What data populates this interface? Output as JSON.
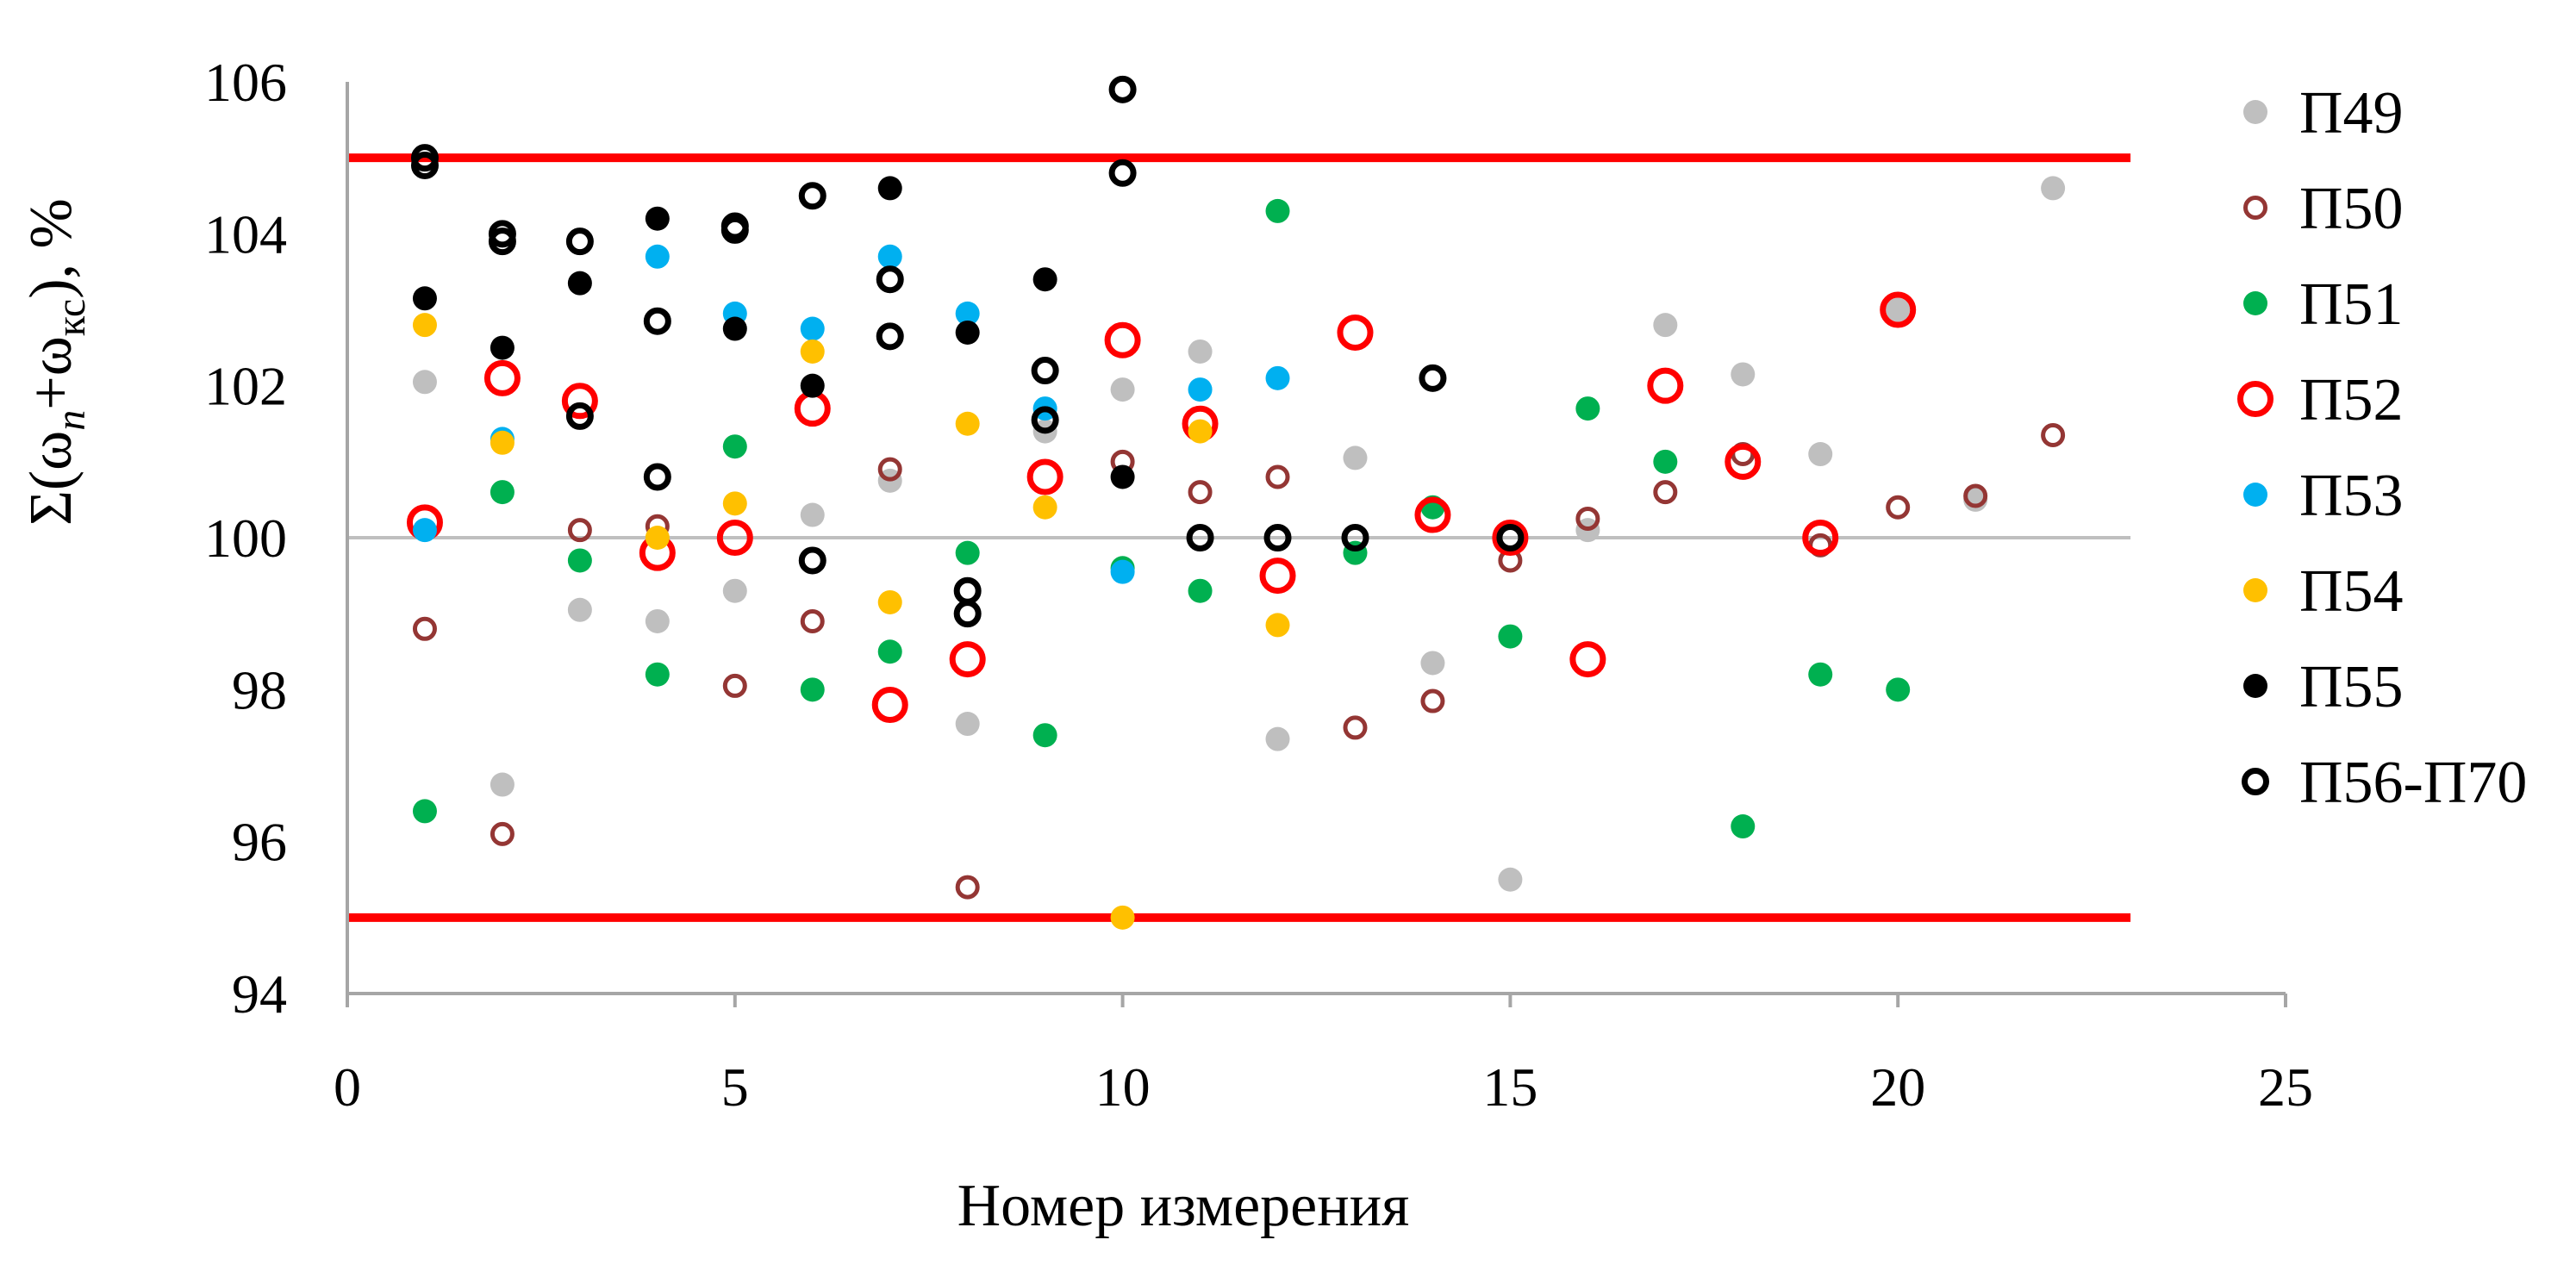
{
  "chart_data": {
    "type": "scatter",
    "title": "",
    "xlabel": "Номер измерения",
    "ylabel": {
      "sigma": "Σ(ω",
      "sub1": "n",
      "plus": "+ω",
      "sub2": "кс",
      "tail": "), %"
    },
    "xlim": [
      0,
      25
    ],
    "ylim": [
      94,
      106
    ],
    "x_ticks": [
      "0",
      "5",
      "10",
      "15",
      "20",
      "25"
    ],
    "y_ticks": [
      "94",
      "96",
      "98",
      "100",
      "102",
      "104",
      "106"
    ],
    "grid": false,
    "legend_position": "right",
    "reference_lines": [
      {
        "y": 105,
        "color": "#ff0000",
        "x_range": [
          0,
          23
        ]
      },
      {
        "y": 95,
        "color": "#ff0000",
        "x_range": [
          0,
          23
        ]
      },
      {
        "y": 100,
        "color": "#bfbfbf",
        "x_range": [
          0,
          23
        ]
      }
    ],
    "series": [
      {
        "name": "П49",
        "marker": "filled",
        "color": "#bfbfbf",
        "size": "small",
        "x": [
          1,
          2,
          3,
          4,
          5,
          6,
          7,
          8,
          9,
          10,
          11,
          12,
          13,
          14,
          15,
          16,
          17,
          18,
          19,
          20,
          21,
          22
        ],
        "y": [
          102.05,
          96.75,
          99.05,
          98.9,
          99.3,
          100.3,
          100.75,
          97.55,
          101.4,
          101.95,
          102.45,
          97.35,
          101.05,
          98.35,
          95.5,
          100.1,
          102.8,
          102.15,
          101.1,
          103.0,
          100.5,
          104.6
        ]
      },
      {
        "name": "П50",
        "marker": "hollow",
        "color": "#943634",
        "size": "small",
        "x": [
          1,
          2,
          3,
          4,
          5,
          6,
          7,
          8,
          9,
          10,
          11,
          12,
          13,
          14,
          15,
          16,
          17,
          18,
          19,
          20,
          21,
          22
        ],
        "y": [
          98.8,
          96.1,
          100.1,
          100.15,
          98.05,
          98.9,
          100.9,
          95.4,
          101.55,
          101.0,
          100.6,
          100.8,
          97.5,
          97.85,
          99.7,
          100.25,
          100.6,
          101.1,
          99.9,
          100.4,
          100.55,
          101.35
        ]
      },
      {
        "name": "П51",
        "marker": "filled",
        "color": "#00b050",
        "size": "small",
        "x": [
          1,
          2,
          3,
          4,
          5,
          6,
          7,
          8,
          9,
          10,
          11,
          12,
          13,
          14,
          15,
          16,
          17,
          18,
          19,
          20
        ],
        "y": [
          96.4,
          100.6,
          99.7,
          98.2,
          101.2,
          98.0,
          98.5,
          99.8,
          97.4,
          99.6,
          99.3,
          104.3,
          99.8,
          100.4,
          98.7,
          101.7,
          101.0,
          96.2,
          98.2,
          98.0
        ]
      },
      {
        "name": "П52",
        "marker": "hollow",
        "color": "#ff0000",
        "size": "large",
        "x": [
          1,
          2,
          3,
          4,
          5,
          6,
          7,
          8,
          9,
          10,
          11,
          12,
          13,
          14,
          15,
          16,
          17,
          18,
          19,
          20
        ],
        "y": [
          100.2,
          102.1,
          101.8,
          99.8,
          100.0,
          101.7,
          97.8,
          98.4,
          100.8,
          102.6,
          101.5,
          99.5,
          102.7,
          100.3,
          100.0,
          98.4,
          102.0,
          101.0,
          100.0,
          103.0
        ]
      },
      {
        "name": "П53",
        "marker": "filled",
        "color": "#00b0f0",
        "size": "small",
        "x": [
          1,
          2,
          4,
          5,
          6,
          7,
          8,
          9,
          10,
          11,
          12
        ],
        "y": [
          100.1,
          101.3,
          103.7,
          102.95,
          102.75,
          103.7,
          102.95,
          101.7,
          99.55,
          101.95,
          102.1
        ]
      },
      {
        "name": "П54",
        "marker": "filled",
        "color": "#ffc000",
        "size": "small",
        "x": [
          1,
          2,
          4,
          5,
          6,
          7,
          8,
          9,
          10,
          11,
          12
        ],
        "y": [
          102.8,
          101.25,
          100.0,
          100.45,
          102.45,
          99.15,
          101.5,
          100.4,
          95.0,
          101.4,
          98.85
        ]
      },
      {
        "name": "П55",
        "marker": "filled",
        "color": "#000000",
        "size": "small",
        "x": [
          1,
          2,
          3,
          4,
          5,
          6,
          7,
          8,
          9,
          10
        ],
        "y": [
          103.15,
          102.5,
          103.35,
          104.2,
          102.75,
          102.0,
          104.6,
          102.7,
          103.4,
          100.8
        ]
      },
      {
        "name": "П56-П70",
        "marker": "hollow",
        "color": "#000000",
        "size": "medium",
        "x": [
          1,
          1,
          2,
          2,
          3,
          3,
          4,
          4,
          5,
          5,
          6,
          6,
          7,
          7,
          8,
          8,
          9,
          9,
          10,
          10,
          11,
          12,
          13,
          14,
          15
        ],
        "y": [
          105.0,
          104.9,
          104.0,
          103.9,
          103.9,
          101.6,
          102.85,
          100.8,
          104.05,
          104.1,
          104.5,
          99.7,
          103.4,
          102.65,
          99.3,
          99.0,
          102.2,
          101.55,
          105.9,
          104.8,
          100.0,
          100.0,
          100.0,
          102.1,
          100.0
        ]
      }
    ]
  }
}
